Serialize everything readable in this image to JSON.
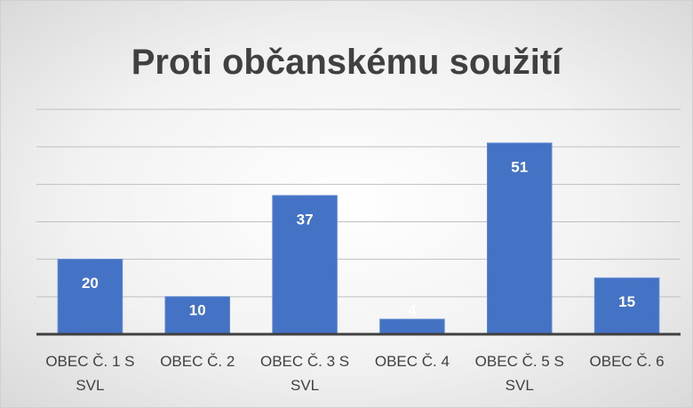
{
  "chart_data": {
    "type": "bar",
    "title": "Proti občanskému soužití",
    "categories": [
      "OBEC Č. 1 S SVL",
      "OBEC Č. 2",
      "OBEC Č. 3 S SVL",
      "OBEC Č. 4",
      "OBEC Č. 5 S SVL",
      "OBEC Č. 6"
    ],
    "values": [
      20,
      10,
      37,
      4,
      51,
      15
    ],
    "color": "#4472c4",
    "ylim": [
      0,
      60
    ],
    "yticks": [
      0,
      10,
      20,
      30,
      40,
      50,
      60
    ],
    "grid": true
  }
}
